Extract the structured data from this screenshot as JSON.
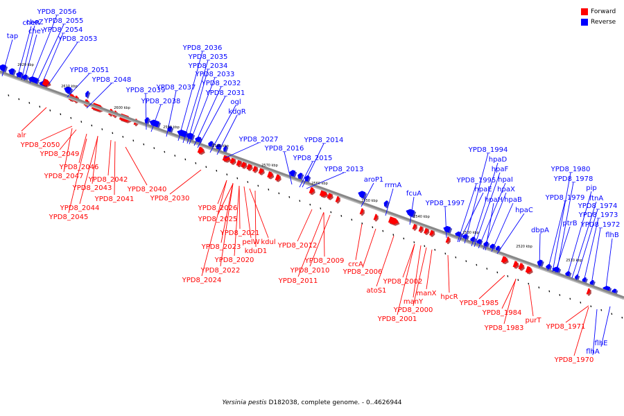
{
  "legend": {
    "forward_label": "Forward",
    "reverse_label": "Reverse",
    "forward_color": "#ff0000",
    "reverse_color": "#0000ff"
  },
  "caption": {
    "organism": "Yersinia pestis",
    "rest": "D182038, complete genome. - 0..4626944"
  },
  "backbone_color": "#888888",
  "ticks": [
    "2620 kbp",
    "2610 kbp",
    "2600 kbp",
    "2590 kbp",
    "2580 kbp",
    "2570 kbp",
    "2560 kbp",
    "2550 kbp",
    "2540 kbp",
    "2530 kbp",
    "2520 kbp",
    "2510 kbp"
  ],
  "reverse_genes": [
    "tap",
    "cheZ",
    "cheR",
    "cheY",
    "YPD8_2056",
    "YPD8_2055",
    "YPD8_2054",
    "YPD8_2053",
    "YPD8_2051",
    "YPD8_2048",
    "YPD8_2039",
    "YPD8_2038",
    "YPD8_2037",
    "YPD8_2036",
    "YPD8_2035",
    "YPD8_2034",
    "YPD8_2033",
    "YPD8_2032",
    "YPD8_2031",
    "ogl",
    "kdgR",
    "YPD8_2027",
    "YPD8_2016",
    "YPD8_2015",
    "YPD8_2014",
    "YPD8_2013",
    "aroP1",
    "rrmA",
    "fcuA",
    "YPD8_1997",
    "YPD8_1995",
    "YPD8_1994",
    "hpaD",
    "hpaF",
    "hpaE",
    "hpaI",
    "hpaX",
    "hpaH",
    "hpaB",
    "hpaC",
    "dbpA",
    "ptrB",
    "YPD8_1980",
    "YPD8_1978",
    "YPD8_1979",
    "pip",
    "ftnA",
    "YPD8_1974",
    "YPD8_1973",
    "YPD8_1972",
    "flhB",
    "flhE",
    "flhA"
  ],
  "forward_genes": [
    "alr",
    "YPD8_2050",
    "YPD8_2049",
    "YPD8_2046",
    "YPD8_2047",
    "YPD8_2043",
    "YPD8_2042",
    "YPD8_2044",
    "YPD8_2041",
    "YPD8_2040",
    "YPD8_2045",
    "YPD8_2030",
    "YPD8_2026",
    "YPD8_2025",
    "YPD8_2021",
    "pelW",
    "kdul",
    "YPD8_2023",
    "kduD1",
    "YPD8_2020",
    "YPD8_2022",
    "YPD8_2024",
    "YPD8_2012",
    "YPD8_2009",
    "YPD8_2010",
    "YPD8_2011",
    "crcA",
    "YPD8_2006",
    "atoS1",
    "YPD8_2002",
    "manX",
    "manY",
    "YPD8_2000",
    "YPD8_2001",
    "hpcR",
    "YPD8_1985",
    "YPD8_1984",
    "YPD8_1983",
    "purT",
    "YPD8_1971",
    "YPD8_1970"
  ]
}
